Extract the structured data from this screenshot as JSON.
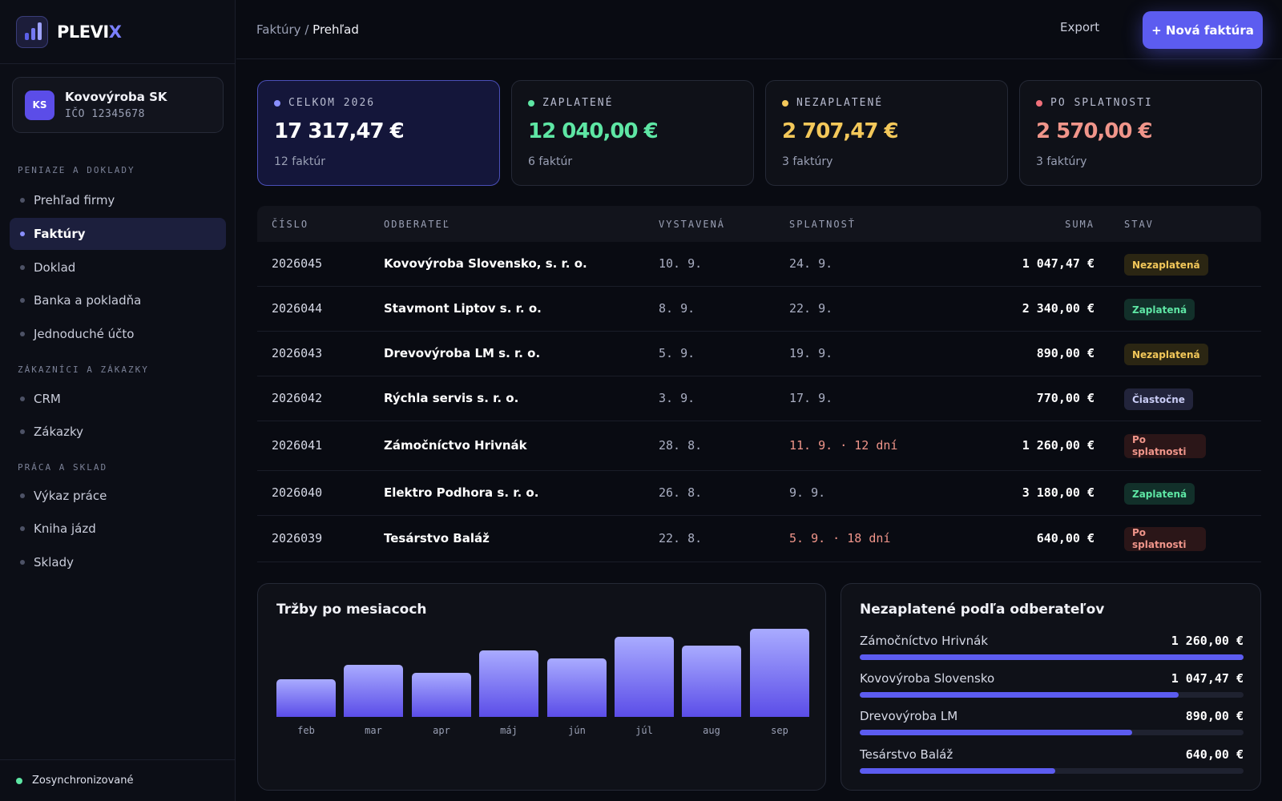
{
  "brand": {
    "name_main": "PLEVI",
    "name_accent": "X"
  },
  "company": {
    "initials": "KS",
    "name": "Kovovýroba SK",
    "ico": "IČO 12345678"
  },
  "nav": {
    "sections": [
      {
        "title": "PENIAZE A DOKLADY",
        "items": [
          {
            "label": "Prehľad firmy",
            "active": false
          },
          {
            "label": "Faktúry",
            "active": true
          },
          {
            "label": "Doklad",
            "active": false
          },
          {
            "label": "Banka a pokladňa",
            "active": false
          },
          {
            "label": "Jednoduché účto",
            "active": false
          }
        ]
      },
      {
        "title": "ZÁKAZNÍCI A ZÁKAZKY",
        "items": [
          {
            "label": "CRM",
            "active": false
          },
          {
            "label": "Zákazky",
            "active": false
          }
        ]
      },
      {
        "title": "PRÁCA A SKLAD",
        "items": [
          {
            "label": "Výkaz práce",
            "active": false
          },
          {
            "label": "Kniha jázd",
            "active": false
          },
          {
            "label": "Sklady",
            "active": false
          }
        ]
      }
    ]
  },
  "sync": {
    "label": "Zosynchronizované"
  },
  "topbar": {
    "breadcrumb_parent": "Faktúry /",
    "breadcrumb_current": "Prehľad",
    "export_label": "Export",
    "new_invoice_label": "+ Nová faktúra"
  },
  "stats": [
    {
      "label": "CELKOM 2026",
      "value": "17 317,47 €",
      "sub": "12 faktúr",
      "color": "#8a8fff",
      "value_color": "#ffffff"
    },
    {
      "label": "ZAPLATENÉ",
      "value": "12 040,00 €",
      "sub": "6 faktúr",
      "color": "#5ee6a4",
      "value_color": "#5ee6a4"
    },
    {
      "label": "NEZAPLATENÉ",
      "value": "2 707,47 €",
      "sub": "3 faktúry",
      "color": "#f3c85a",
      "value_color": "#f3c85a"
    },
    {
      "label": "PO SPLATNOSTI",
      "value": "2 570,00 €",
      "sub": "3 faktúry",
      "color": "#f0707a",
      "value_color": "#f0958a"
    }
  ],
  "table": {
    "columns": {
      "number": "ČÍSLO",
      "customer": "ODBERATEĽ",
      "issued": "VYSTAVENÁ",
      "due": "SPLATNOSŤ",
      "sum": "SUMA",
      "status": "STAV"
    },
    "rows": [
      {
        "number": "2026045",
        "customer": "Kovovýroba Slovensko, s. r. o.",
        "issued": "10. 9.",
        "due": "24. 9.",
        "overdue": false,
        "sum": "1 047,47 €",
        "status": "Nezaplatená",
        "status_kind": "unpaid"
      },
      {
        "number": "2026044",
        "customer": "Stavmont Liptov s. r. o.",
        "issued": "8. 9.",
        "due": "22. 9.",
        "overdue": false,
        "sum": "2 340,00 €",
        "status": "Zaplatená",
        "status_kind": "paid"
      },
      {
        "number": "2026043",
        "customer": "Drevovýroba LM s. r. o.",
        "issued": "5. 9.",
        "due": "19. 9.",
        "overdue": false,
        "sum": "890,00 €",
        "status": "Nezaplatená",
        "status_kind": "unpaid"
      },
      {
        "number": "2026042",
        "customer": "Rýchla servis s. r. o.",
        "issued": "3. 9.",
        "due": "17. 9.",
        "overdue": false,
        "sum": "770,00 €",
        "status": "Čiastočne",
        "status_kind": "partial"
      },
      {
        "number": "2026041",
        "customer": "Zámočníctvo Hrivnák",
        "issued": "28. 8.",
        "due": "11. 9. · 12 dní",
        "overdue": true,
        "sum": "1 260,00 €",
        "status": "Po splatnosti",
        "status_kind": "overdue"
      },
      {
        "number": "2026040",
        "customer": "Elektro Podhora s. r. o.",
        "issued": "26. 8.",
        "due": "9. 9.",
        "overdue": false,
        "sum": "3 180,00 €",
        "status": "Zaplatená",
        "status_kind": "paid"
      },
      {
        "number": "2026039",
        "customer": "Tesárstvo Baláž",
        "issued": "22. 8.",
        "due": "5. 9. · 18 dní",
        "overdue": true,
        "sum": "640,00 €",
        "status": "Po splatnosti",
        "status_kind": "overdue"
      }
    ]
  },
  "revenue_chart": {
    "title": "Tržby po mesiacoch",
    "chart_data": {
      "type": "bar",
      "categories": [
        "feb",
        "mar",
        "apr",
        "máj",
        "jún",
        "júl",
        "aug",
        "sep"
      ],
      "values": [
        43,
        59,
        50,
        75,
        66,
        91,
        81,
        100
      ],
      "ylim": [
        0,
        100
      ],
      "grid": false
    }
  },
  "debtors": {
    "title": "Nezaplatené podľa odberateľov",
    "items": [
      {
        "name": "Zámočníctvo Hrivnák",
        "amount": "1 260,00 €",
        "fraction": 1.0
      },
      {
        "name": "Kovovýroba Slovensko",
        "amount": "1 047,47 €",
        "fraction": 0.83
      },
      {
        "name": "Drevovýroba LM",
        "amount": "890,00 €",
        "fraction": 0.71
      },
      {
        "name": "Tesárstvo Baláž",
        "amount": "640,00 €",
        "fraction": 0.51
      }
    ]
  }
}
